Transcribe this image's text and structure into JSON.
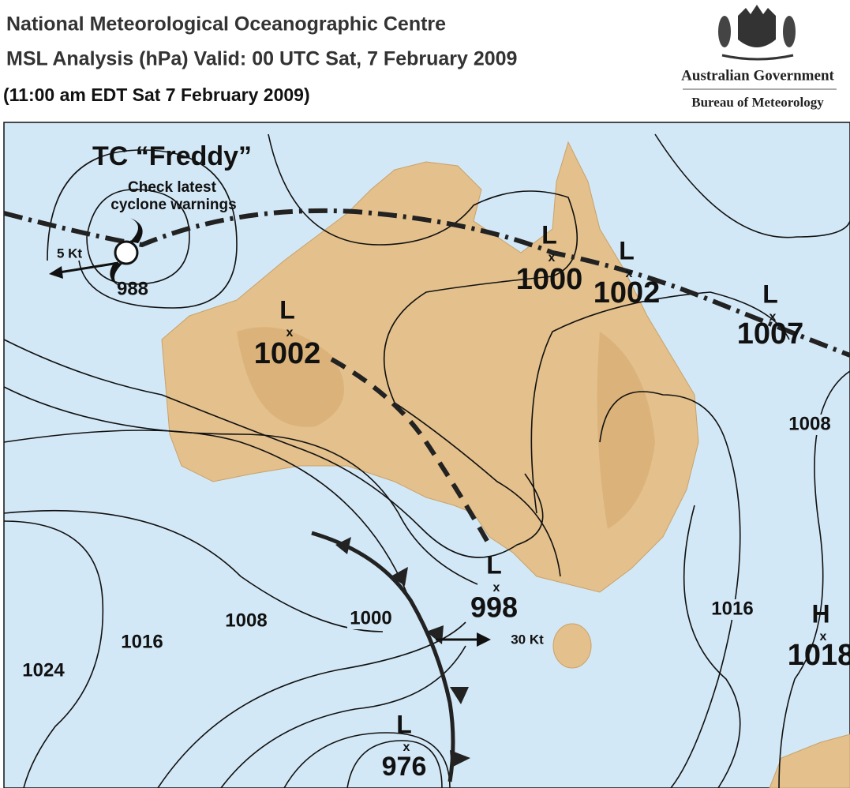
{
  "header": {
    "line1": "National Meteorological Oceanographic Centre",
    "line2": "MSL Analysis (hPa) Valid: 00 UTC Sat, 7 February 2009",
    "line3": "(11:00 am EDT Sat 7 February 2009)"
  },
  "logo": {
    "government": "Australian Government",
    "bureau": "Bureau of Meteorology"
  },
  "cyclone": {
    "name": "TC “Freddy”",
    "warning": [
      "Check latest",
      "cyclone warnings"
    ],
    "pressure": "988",
    "motion": "5 Kt"
  },
  "front_motion": "30 Kt",
  "systems": [
    {
      "letter": "L",
      "marker": "x",
      "pressure": "1000"
    },
    {
      "letter": "L",
      "marker": "x",
      "pressure": "1002"
    },
    {
      "letter": "L",
      "marker": "x",
      "pressure": "1007"
    },
    {
      "letter": "L",
      "marker": "x",
      "pressure": "1002"
    },
    {
      "letter": "L",
      "marker": "x",
      "pressure": "998"
    },
    {
      "letter": "L",
      "marker": "x",
      "pressure": "976"
    },
    {
      "letter": "H",
      "marker": "x",
      "pressure": "1018"
    }
  ],
  "isobar_labels": [
    "1008",
    "1016",
    "1000",
    "1008",
    "1016",
    "1024"
  ]
}
